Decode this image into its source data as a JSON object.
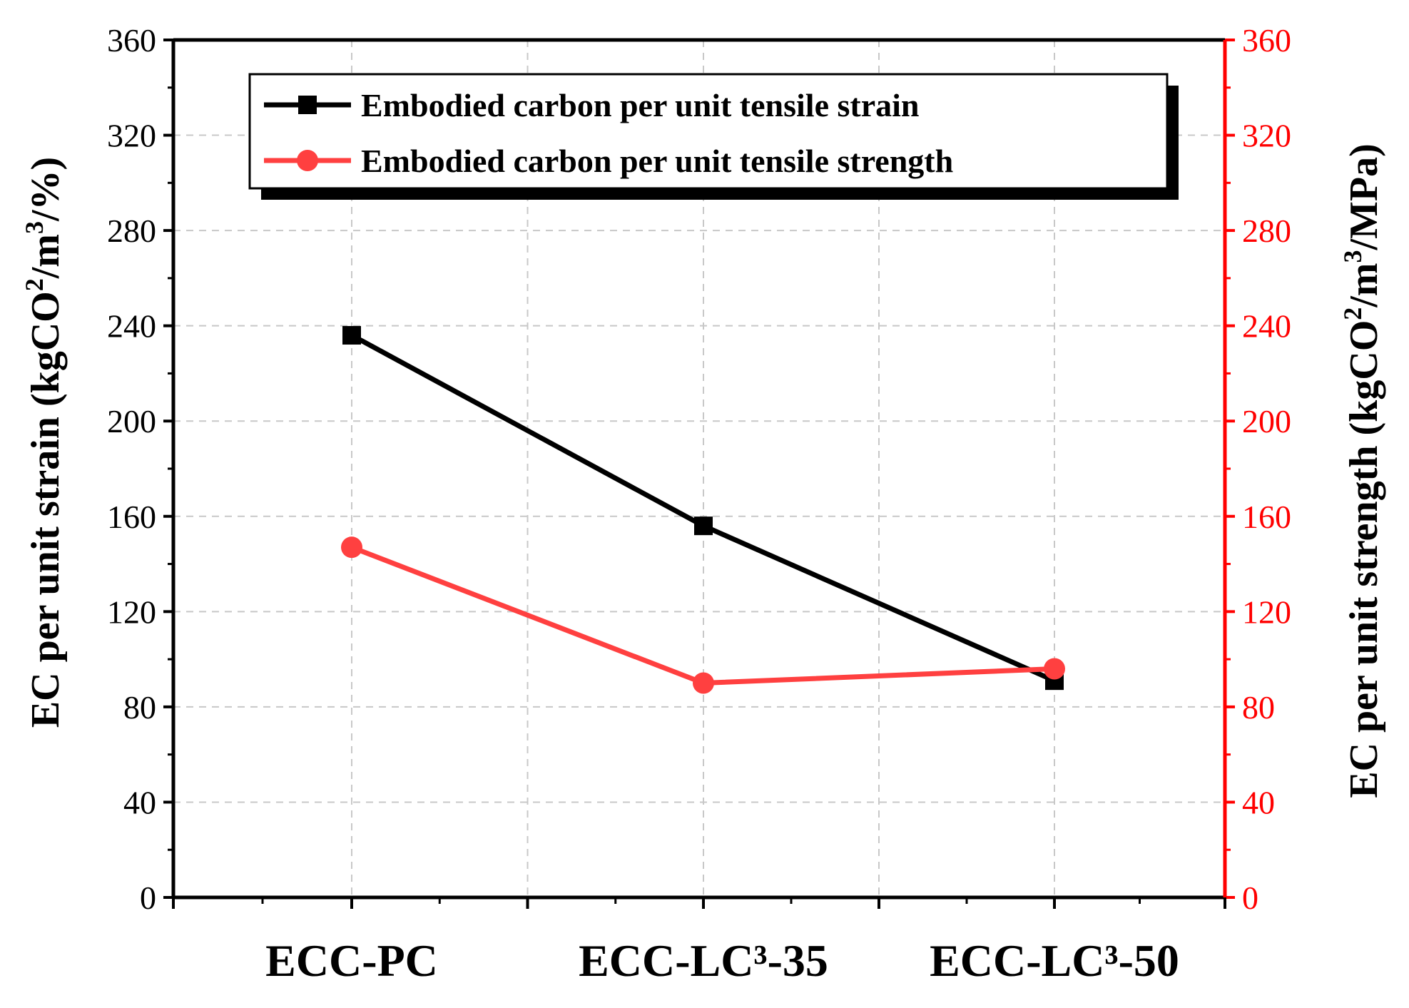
{
  "chart_data": {
    "type": "line",
    "categories": [
      "ECC-PC",
      "ECC-LC³-35",
      "ECC-LC³-50"
    ],
    "series": [
      {
        "name": "Embodied carbon per unit tensile strain",
        "axis": "left",
        "color": "#000000",
        "marker": "square",
        "values": [
          236,
          156,
          91
        ]
      },
      {
        "name": "Embodied carbon per unit tensile strength",
        "axis": "right",
        "color": "#ff4040",
        "marker": "circle",
        "values": [
          147,
          90,
          96
        ]
      }
    ],
    "y_left": {
      "label_prefix": "EC per unit strain (kgCO",
      "label_sup1": "2",
      "label_mid": "/m",
      "label_sup2": "3",
      "label_suffix": "/%)",
      "ylim": [
        0,
        360
      ],
      "ticks": [
        "0",
        "40",
        "80",
        "120",
        "160",
        "200",
        "240",
        "280",
        "320",
        "360"
      ],
      "color": "#000000"
    },
    "y_right": {
      "label_prefix": "EC per unit strength (kgCO",
      "label_sup1": "2",
      "label_mid": "/m",
      "label_sup2": "3",
      "label_suffix": "/MPa)",
      "ylim": [
        0,
        360
      ],
      "ticks": [
        "0",
        "40",
        "80",
        "120",
        "160",
        "200",
        "240",
        "280",
        "320",
        "360"
      ],
      "color": "#ff0000"
    },
    "grid": true,
    "legend": "top-left"
  }
}
